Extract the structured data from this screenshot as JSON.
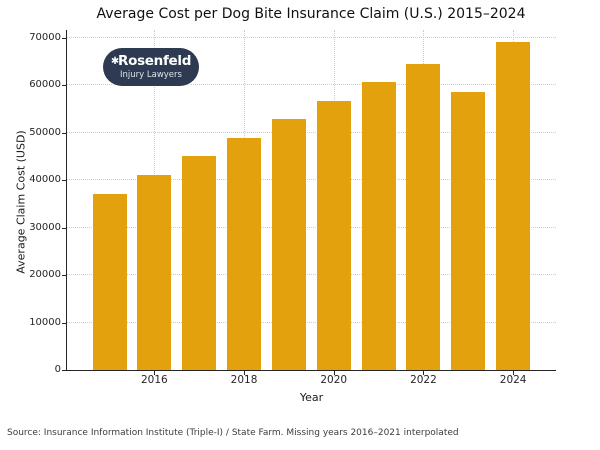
{
  "logo": {
    "star_glyph": "✱",
    "name": "Rosenfeld",
    "tagline": "Injury Lawyers",
    "bg_color": "#2D3A52"
  },
  "source_note": "Source: Insurance Information Institute (Triple-I) / State Farm. Missing years 2016–2021 interpolated",
  "chart_data": {
    "type": "bar",
    "title": "Average Cost per Dog Bite Insurance Claim (U.S.) 2015–2024",
    "xlabel": "Year",
    "ylabel": "Average Claim Cost (USD)",
    "categories": [
      2015,
      2016,
      2017,
      2018,
      2019,
      2020,
      2021,
      2022,
      2023,
      2024
    ],
    "values": [
      37214,
      41120,
      45026,
      48932,
      52838,
      56743,
      60649,
      64555,
      58545,
      69272
    ],
    "bar_color": "#E4A10E",
    "ylim": [
      0,
      71700
    ],
    "y_ticks": [
      0,
      10000,
      20000,
      30000,
      40000,
      50000,
      60000,
      70000
    ],
    "y_tick_labels": [
      "0",
      "10000",
      "20000",
      "30000",
      "40000",
      "50000",
      "60000",
      "70000"
    ],
    "x_ticks": [
      2016,
      2018,
      2020,
      2022,
      2024
    ],
    "x_tick_labels": [
      "2016",
      "2018",
      "2020",
      "2022",
      "2024"
    ],
    "grid": "dotted",
    "legend": null
  }
}
